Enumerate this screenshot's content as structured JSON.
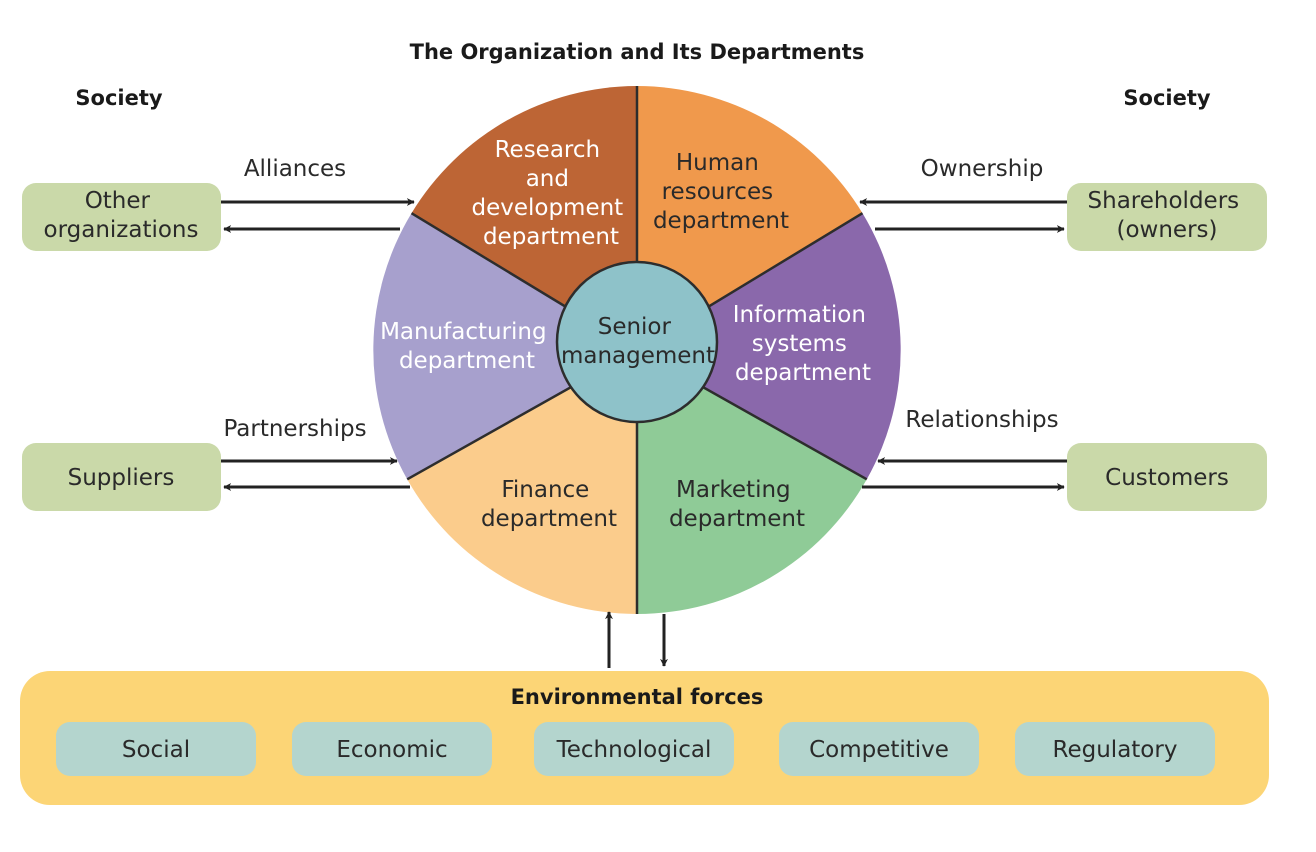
{
  "title": "The Organization and Its Departments",
  "society_left": "Society",
  "society_right": "Society",
  "external": {
    "other_orgs": [
      "Other",
      "organizations"
    ],
    "shareholders": [
      "Shareholders",
      "(owners)"
    ],
    "suppliers": [
      "Suppliers"
    ],
    "customers": [
      "Customers"
    ]
  },
  "links": {
    "alliances": "Alliances",
    "ownership": "Ownership",
    "partnerships": "Partnerships",
    "relationships": "Relationships"
  },
  "departments": {
    "rnd": [
      "Research",
      "and",
      "development",
      "department"
    ],
    "hr": [
      "Human",
      "resources",
      "department"
    ],
    "is": [
      "Information",
      "systems",
      "department"
    ],
    "marketing": [
      "Marketing",
      "department"
    ],
    "finance": [
      "Finance",
      "department"
    ],
    "manufacturing": [
      "Manufacturing",
      "department"
    ]
  },
  "center": [
    "Senior",
    "management"
  ],
  "environment": {
    "title": "Environmental forces",
    "forces": [
      "Social",
      "Economic",
      "Technological",
      "Competitive",
      "Regulatory"
    ]
  },
  "colors": {
    "rnd": "#bd6535",
    "hr": "#f0994c",
    "is": "#8a68ab",
    "marketing": "#8fcb97",
    "finance": "#fbcc8c",
    "manufacturing": "#a7a0cd",
    "center": "#8ec2c9",
    "external_box": "#cad9a9",
    "env_band": "#fcd576",
    "force_box": "#b4d5ce"
  }
}
